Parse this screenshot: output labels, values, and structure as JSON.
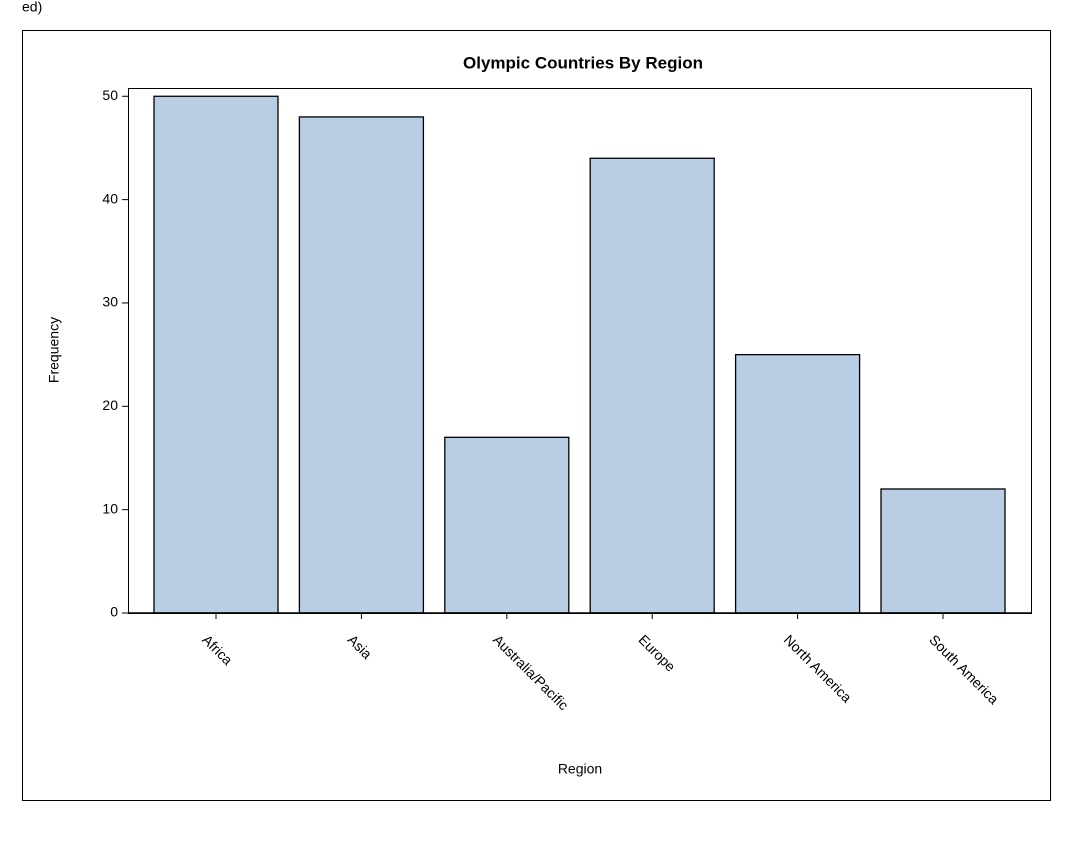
{
  "caption_fragment": "ed)",
  "chart_data": {
    "type": "bar",
    "title": "Olympic Countries By Region",
    "x_label": "Region",
    "y_label": "Frequency",
    "categories": [
      "Africa",
      "Asia",
      "Australia/Pacific",
      "Europe",
      "North America",
      "South America"
    ],
    "values": [
      50,
      48,
      17,
      44,
      25,
      12
    ],
    "color": "#b9cde5",
    "ylim": [
      0,
      50.8
    ],
    "yticks": [
      0,
      10,
      20,
      30,
      40,
      50
    ]
  }
}
